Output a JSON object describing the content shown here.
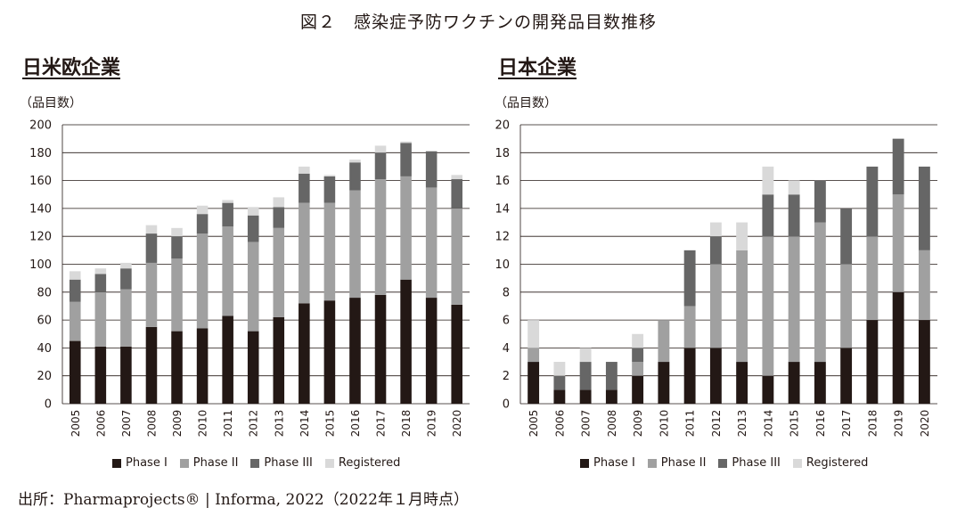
{
  "figure_title": "図２　感染症予防ワクチンの開発品目数推移",
  "source": "出所：Pharmaprojects® |  Informa, 2022（2022年１月時点）",
  "colors": {
    "phase1": "#231815",
    "phase2": "#a0a0a0",
    "phase3": "#666666",
    "registered": "#d9d9d9"
  },
  "chart_data": [
    {
      "id": "west",
      "type": "bar",
      "stacked": true,
      "title": "日米欧企業",
      "ylabel": "（品目数）",
      "xlabel": "",
      "ylim": [
        0,
        200
      ],
      "yticks": [
        0,
        20,
        40,
        60,
        80,
        100,
        120,
        140,
        160,
        180,
        200
      ],
      "grid": true,
      "legend_position": "bottom",
      "categories": [
        "2005",
        "2006",
        "2007",
        "2008",
        "2009",
        "2010",
        "2011",
        "2012",
        "2013",
        "2014",
        "2015",
        "2016",
        "2017",
        "2018",
        "2019",
        "2020"
      ],
      "series": [
        {
          "name": "Phase I",
          "color_key": "phase1",
          "values": [
            45,
            41,
            41,
            55,
            52,
            54,
            63,
            52,
            62,
            72,
            74,
            76,
            78,
            89,
            76,
            71
          ]
        },
        {
          "name": "Phase II",
          "color_key": "phase2",
          "values": [
            28,
            39,
            41,
            46,
            52,
            68,
            64,
            64,
            64,
            72,
            70,
            77,
            83,
            74,
            79,
            69
          ]
        },
        {
          "name": "Phase III",
          "color_key": "phase3",
          "values": [
            16,
            13,
            15,
            21,
            16,
            14,
            17,
            19,
            15,
            21,
            19,
            20,
            19,
            24,
            26,
            21
          ]
        },
        {
          "name": "Registered",
          "color_key": "registered",
          "values": [
            6,
            4,
            4,
            6,
            6,
            6,
            2,
            6,
            7,
            5,
            1,
            2,
            5,
            1,
            0,
            3
          ]
        }
      ]
    },
    {
      "id": "japan",
      "type": "bar",
      "stacked": true,
      "title": "日本企業",
      "ylabel": "（品目数）",
      "xlabel": "",
      "ylim": [
        0,
        20
      ],
      "yticks": [
        0,
        2,
        4,
        6,
        8,
        10,
        12,
        14,
        16,
        18,
        20
      ],
      "grid": true,
      "legend_position": "bottom",
      "categories": [
        "2005",
        "2006",
        "2007",
        "2008",
        "2009",
        "2010",
        "2011",
        "2012",
        "2013",
        "2014",
        "2015",
        "2016",
        "2017",
        "2018",
        "2019",
        "2020"
      ],
      "series": [
        {
          "name": "Phase I",
          "color_key": "phase1",
          "values": [
            3,
            1,
            1,
            1,
            2,
            3,
            4,
            4,
            3,
            2,
            3,
            3,
            4,
            6,
            8,
            6
          ]
        },
        {
          "name": "Phase II",
          "color_key": "phase2",
          "values": [
            1,
            0,
            0,
            0,
            1,
            3,
            3,
            6,
            8,
            10,
            9,
            10,
            6,
            6,
            7,
            5
          ]
        },
        {
          "name": "Phase III",
          "color_key": "phase3",
          "values": [
            0,
            1,
            2,
            2,
            1,
            0,
            4,
            2,
            0,
            3,
            3,
            3,
            4,
            5,
            4,
            6
          ]
        },
        {
          "name": "Registered",
          "color_key": "registered",
          "values": [
            2,
            1,
            1,
            0,
            1,
            0,
            0,
            1,
            2,
            2,
            1,
            0,
            0,
            0,
            0,
            0
          ]
        }
      ]
    }
  ]
}
